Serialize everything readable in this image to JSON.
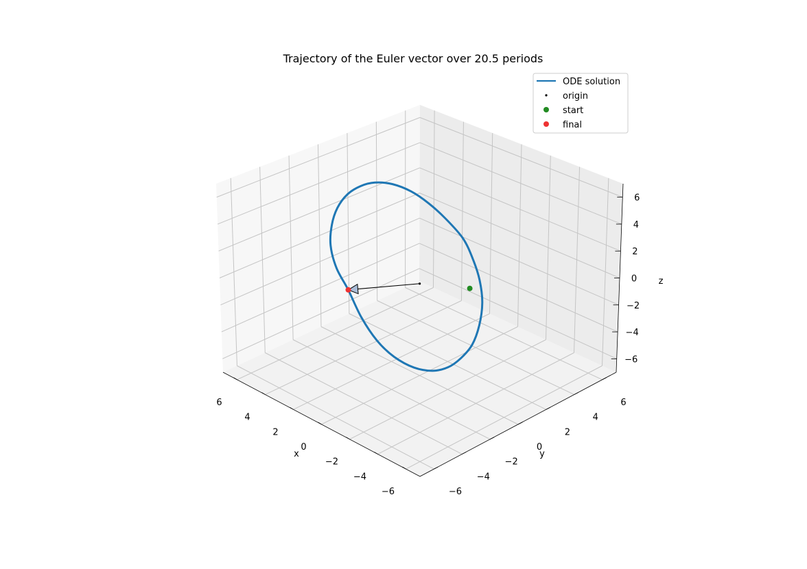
{
  "chart_data": {
    "type": "line",
    "title": "Trajectory of the Euler vector over 20.5 periods",
    "projection": "3d",
    "xlabel": "x",
    "ylabel": "y",
    "zlabel": "z",
    "xlim": [
      -7,
      7
    ],
    "ylim": [
      -7,
      7
    ],
    "zlim": [
      -7,
      7
    ],
    "xticks": [
      "−6",
      "−4",
      "−2",
      "0",
      "2",
      "4",
      "6"
    ],
    "yticks": [
      "−6",
      "−4",
      "−2",
      "0",
      "2",
      "4",
      "6"
    ],
    "zticks": [
      "−6",
      "−4",
      "−2",
      "0",
      "2",
      "4",
      "6"
    ],
    "grid": true,
    "legend_position": "top-right",
    "series": [
      {
        "name": "ODE solution",
        "kind": "line",
        "color": "#1f77b4",
        "description_points": "closed orbit traced repeatedly",
        "x": [
          2.0,
          2.8,
          3.5,
          4.0,
          4.2,
          4.2,
          4.0,
          3.7,
          3.2,
          2.5,
          1.8,
          1.0,
          0.1,
          -0.6,
          -1.3,
          -1.9,
          -2.3,
          -2.5,
          -2.4,
          -2.2,
          -1.8,
          -1.2,
          -0.4,
          0.4,
          1.2,
          2.0
        ],
        "y": [
          -3.0,
          -3.0,
          -2.7,
          -2.1,
          -1.5,
          -0.8,
          -0.1,
          0.6,
          1.3,
          1.9,
          2.4,
          2.8,
          3.1,
          3.1,
          2.9,
          2.5,
          1.9,
          1.2,
          0.5,
          -0.2,
          -0.9,
          -1.6,
          -2.2,
          -2.6,
          -2.9,
          -3.0
        ],
        "z": [
          0.0,
          1.2,
          2.4,
          3.4,
          4.3,
          5.0,
          5.4,
          5.5,
          5.3,
          4.8,
          4.0,
          3.0,
          1.8,
          0.6,
          -0.6,
          -1.8,
          -3.0,
          -4.0,
          -4.7,
          -5.1,
          -5.2,
          -4.9,
          -4.2,
          -3.2,
          -1.7,
          0.0
        ]
      },
      {
        "name": "origin",
        "kind": "point",
        "color": "#000000",
        "x": [
          0
        ],
        "y": [
          0
        ],
        "z": [
          0
        ]
      },
      {
        "name": "start",
        "kind": "point",
        "color": "#228b22",
        "x": [
          -2.5
        ],
        "y": [
          1.0
        ],
        "z": [
          0.4
        ]
      },
      {
        "name": "final",
        "kind": "point",
        "color": "#ee3333",
        "x": [
          2.0
        ],
        "y": [
          -3.0
        ],
        "z": [
          0.0
        ]
      }
    ],
    "arrow": {
      "from": [
        0,
        0,
        0
      ],
      "to": [
        2.0,
        -3.0,
        0.0
      ],
      "color": "#000000",
      "head_fill": "#a9bcd6"
    }
  }
}
